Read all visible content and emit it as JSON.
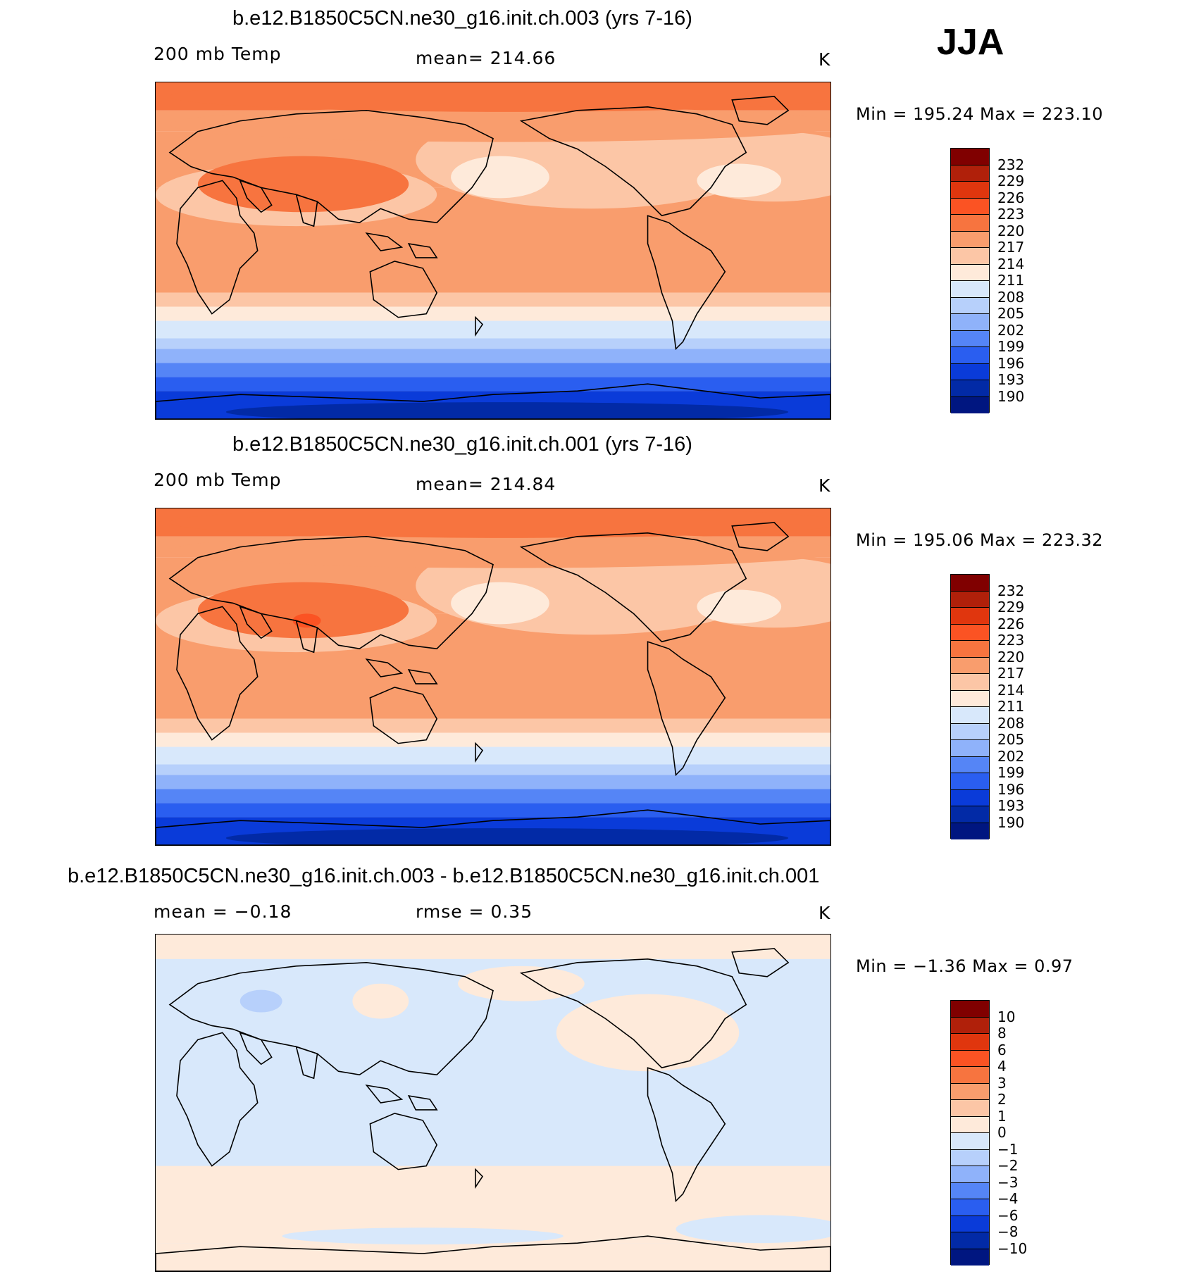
{
  "season": "JJA",
  "panels": [
    {
      "title": "b.e12.B1850C5CN.ne30_g16.init.ch.003 (yrs 7-16)",
      "left_label": "200 mb Temp",
      "center_label": "mean=  214.66",
      "units": "K",
      "minmax": "Min  =  195.24  Max  =  223.10",
      "kind": "abs"
    },
    {
      "title": "b.e12.B1850C5CN.ne30_g16.init.ch.001 (yrs 7-16)",
      "left_label": "200 mb Temp",
      "center_label": "mean=  214.84",
      "units": "K",
      "minmax": "Min  =  195.06  Max  =  223.32",
      "kind": "abs"
    },
    {
      "title": "b.e12.B1850C5CN.ne30_g16.init.ch.003 - b.e12.B1850C5CN.ne30_g16.init.ch.001",
      "left_label": "mean  =     −0.18",
      "center_label": "rmse  =     0.35",
      "units": "K",
      "minmax": "Min  =    −1.36  Max  =     0.97",
      "kind": "diff"
    }
  ],
  "colorbar_abs_labels": [
    "232",
    "229",
    "226",
    "223",
    "220",
    "217",
    "214",
    "211",
    "208",
    "205",
    "202",
    "199",
    "196",
    "193",
    "190"
  ],
  "colorbar_diff_labels": [
    "10",
    "8",
    "6",
    "4",
    "3",
    "2",
    "1",
    "0",
    "−1",
    "−2",
    "−3",
    "−4",
    "−6",
    "−8",
    "−10"
  ],
  "colorbar_colors": [
    "#800000",
    "#b0200a",
    "#e0360e",
    "#fb5323",
    "#f7743f",
    "#f99d6d",
    "#fcc6a6",
    "#feeada",
    "#d8e8fb",
    "#b7d0fb",
    "#8fb2fa",
    "#5585f6",
    "#2a5ef0",
    "#0a3bd9",
    "#022aa6",
    "#001680"
  ]
}
